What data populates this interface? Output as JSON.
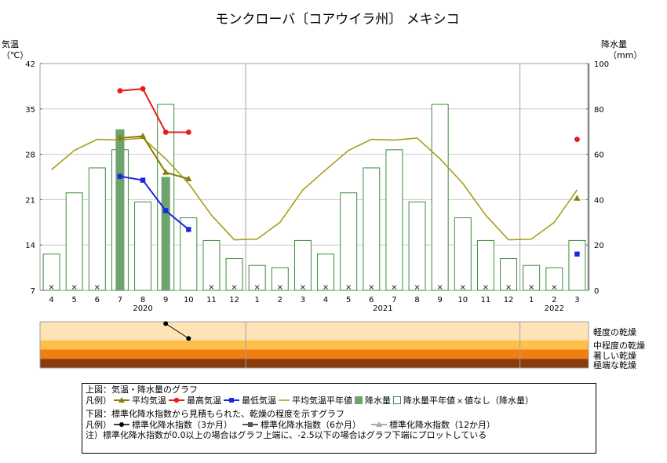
{
  "title": "モンクローバ〔コアウイラ州〕 メキシコ",
  "chart_data": {
    "type": "bar+line",
    "left_axis": {
      "label_line1": "気温",
      "label_line2": "（℃）",
      "min": 7,
      "max": 42,
      "ticks": [
        7,
        14,
        21,
        28,
        35,
        42
      ]
    },
    "right_axis": {
      "label_line1": "降水量",
      "label_line2": "（mm）",
      "min": 0,
      "max": 100,
      "ticks": [
        0,
        20,
        40,
        60,
        80,
        100
      ]
    },
    "months": [
      "4",
      "5",
      "6",
      "7",
      "8",
      "9",
      "10",
      "11",
      "12",
      "1",
      "2",
      "3",
      "4",
      "5",
      "6",
      "7",
      "8",
      "9",
      "10",
      "11",
      "12",
      "1",
      "2",
      "3"
    ],
    "years": [
      {
        "label": "2020",
        "start": 0,
        "end": 8
      },
      {
        "label": "2021",
        "start": 9,
        "end": 20
      },
      {
        "label": "2022",
        "start": 21,
        "end": 23
      }
    ],
    "series": {
      "avg_temp": [
        null,
        null,
        null,
        30.5,
        30.8,
        25.2,
        24.2,
        null,
        null,
        null,
        null,
        null,
        null,
        null,
        null,
        null,
        null,
        null,
        null,
        null,
        null,
        null,
        null,
        21.2
      ],
      "max_temp": [
        null,
        null,
        null,
        37.8,
        38.1,
        31.4,
        31.4,
        null,
        null,
        null,
        null,
        null,
        null,
        null,
        null,
        null,
        null,
        null,
        null,
        null,
        null,
        null,
        null,
        30.3
      ],
      "min_temp": [
        null,
        null,
        null,
        24.6,
        24.0,
        19.3,
        16.4,
        null,
        null,
        null,
        null,
        null,
        null,
        null,
        null,
        null,
        null,
        null,
        null,
        null,
        null,
        null,
        null,
        12.6
      ],
      "normal_temp": [
        25.6,
        28.6,
        30.3,
        30.2,
        30.5,
        27.3,
        23.5,
        18.6,
        14.8,
        14.9,
        17.5,
        22.5,
        25.6,
        28.6,
        30.3,
        30.2,
        30.5,
        27.3,
        23.5,
        18.6,
        14.8,
        14.9,
        17.5,
        22.5
      ],
      "precip": [
        null,
        null,
        null,
        71,
        null,
        50,
        null,
        null,
        null,
        null,
        null,
        null,
        null,
        null,
        null,
        null,
        null,
        null,
        null,
        null,
        null,
        null,
        null,
        null
      ],
      "precip_normal": [
        16,
        43,
        54,
        62,
        39,
        82,
        32,
        22,
        14,
        11,
        10,
        22,
        16,
        43,
        54,
        62,
        39,
        82,
        32,
        22,
        14,
        11,
        10,
        22
      ],
      "no_precip_value": [
        true,
        true,
        true,
        false,
        false,
        false,
        false,
        true,
        true,
        true,
        true,
        true,
        true,
        true,
        true,
        true,
        true,
        true,
        true,
        true,
        true,
        true,
        true,
        false
      ],
      "spi3": [
        null,
        null,
        null,
        null,
        null,
        -0.1,
        -0.9,
        null,
        null,
        null,
        null,
        null,
        null,
        null,
        null,
        null,
        null,
        null,
        null,
        null,
        null,
        null,
        null,
        null
      ]
    },
    "dryness_bands": [
      {
        "label": "軽度の乾燥",
        "min": -1.0,
        "max": 0.0,
        "color": "#fde3b6"
      },
      {
        "label": "中程度の乾燥",
        "min": -1.5,
        "max": -1.0,
        "color": "#fec04a"
      },
      {
        "label": "著しい乾燥",
        "min": -2.0,
        "max": -1.5,
        "color": "#f07e12"
      },
      {
        "label": "極端な乾燥",
        "min": -2.5,
        "max": -2.0,
        "color": "#8a3b0e"
      }
    ],
    "colors": {
      "avg_temp": "#8b7d0a",
      "max_temp": "#e81c1c",
      "min_temp": "#1a27e0",
      "normal_temp": "#a89e1a",
      "precip": "#6ea36e",
      "precip_normal": "#3c8c3c",
      "grid": "#a0a0a0",
      "spi3": "#000000",
      "spi6": "#555555",
      "spi12": "#aaaaaa"
    }
  },
  "legend": {
    "top_title": "上図：気温・降水量のグラフ",
    "prefix": "凡例）",
    "avg_temp": "平均気温",
    "max_temp": "最高気温",
    "min_temp": "最低気温",
    "normal_temp": "平均気温平年値",
    "precip": "降水量",
    "precip_normal": "降水量平年値",
    "no_value": "値なし（降水量）",
    "bottom_title": "下図：標準化降水指数から見積もられた、乾燥の程度を示すグラフ",
    "spi3": "標準化降水指数（3か月）",
    "spi6": "標準化降水指数（6か月）",
    "spi12": "標準化降水指数（12か月）",
    "note": "注）標準化降水指数が0.0以上の場合はグラフ上端に、-2.5以下の場合はグラフ下端にプロットしている"
  }
}
